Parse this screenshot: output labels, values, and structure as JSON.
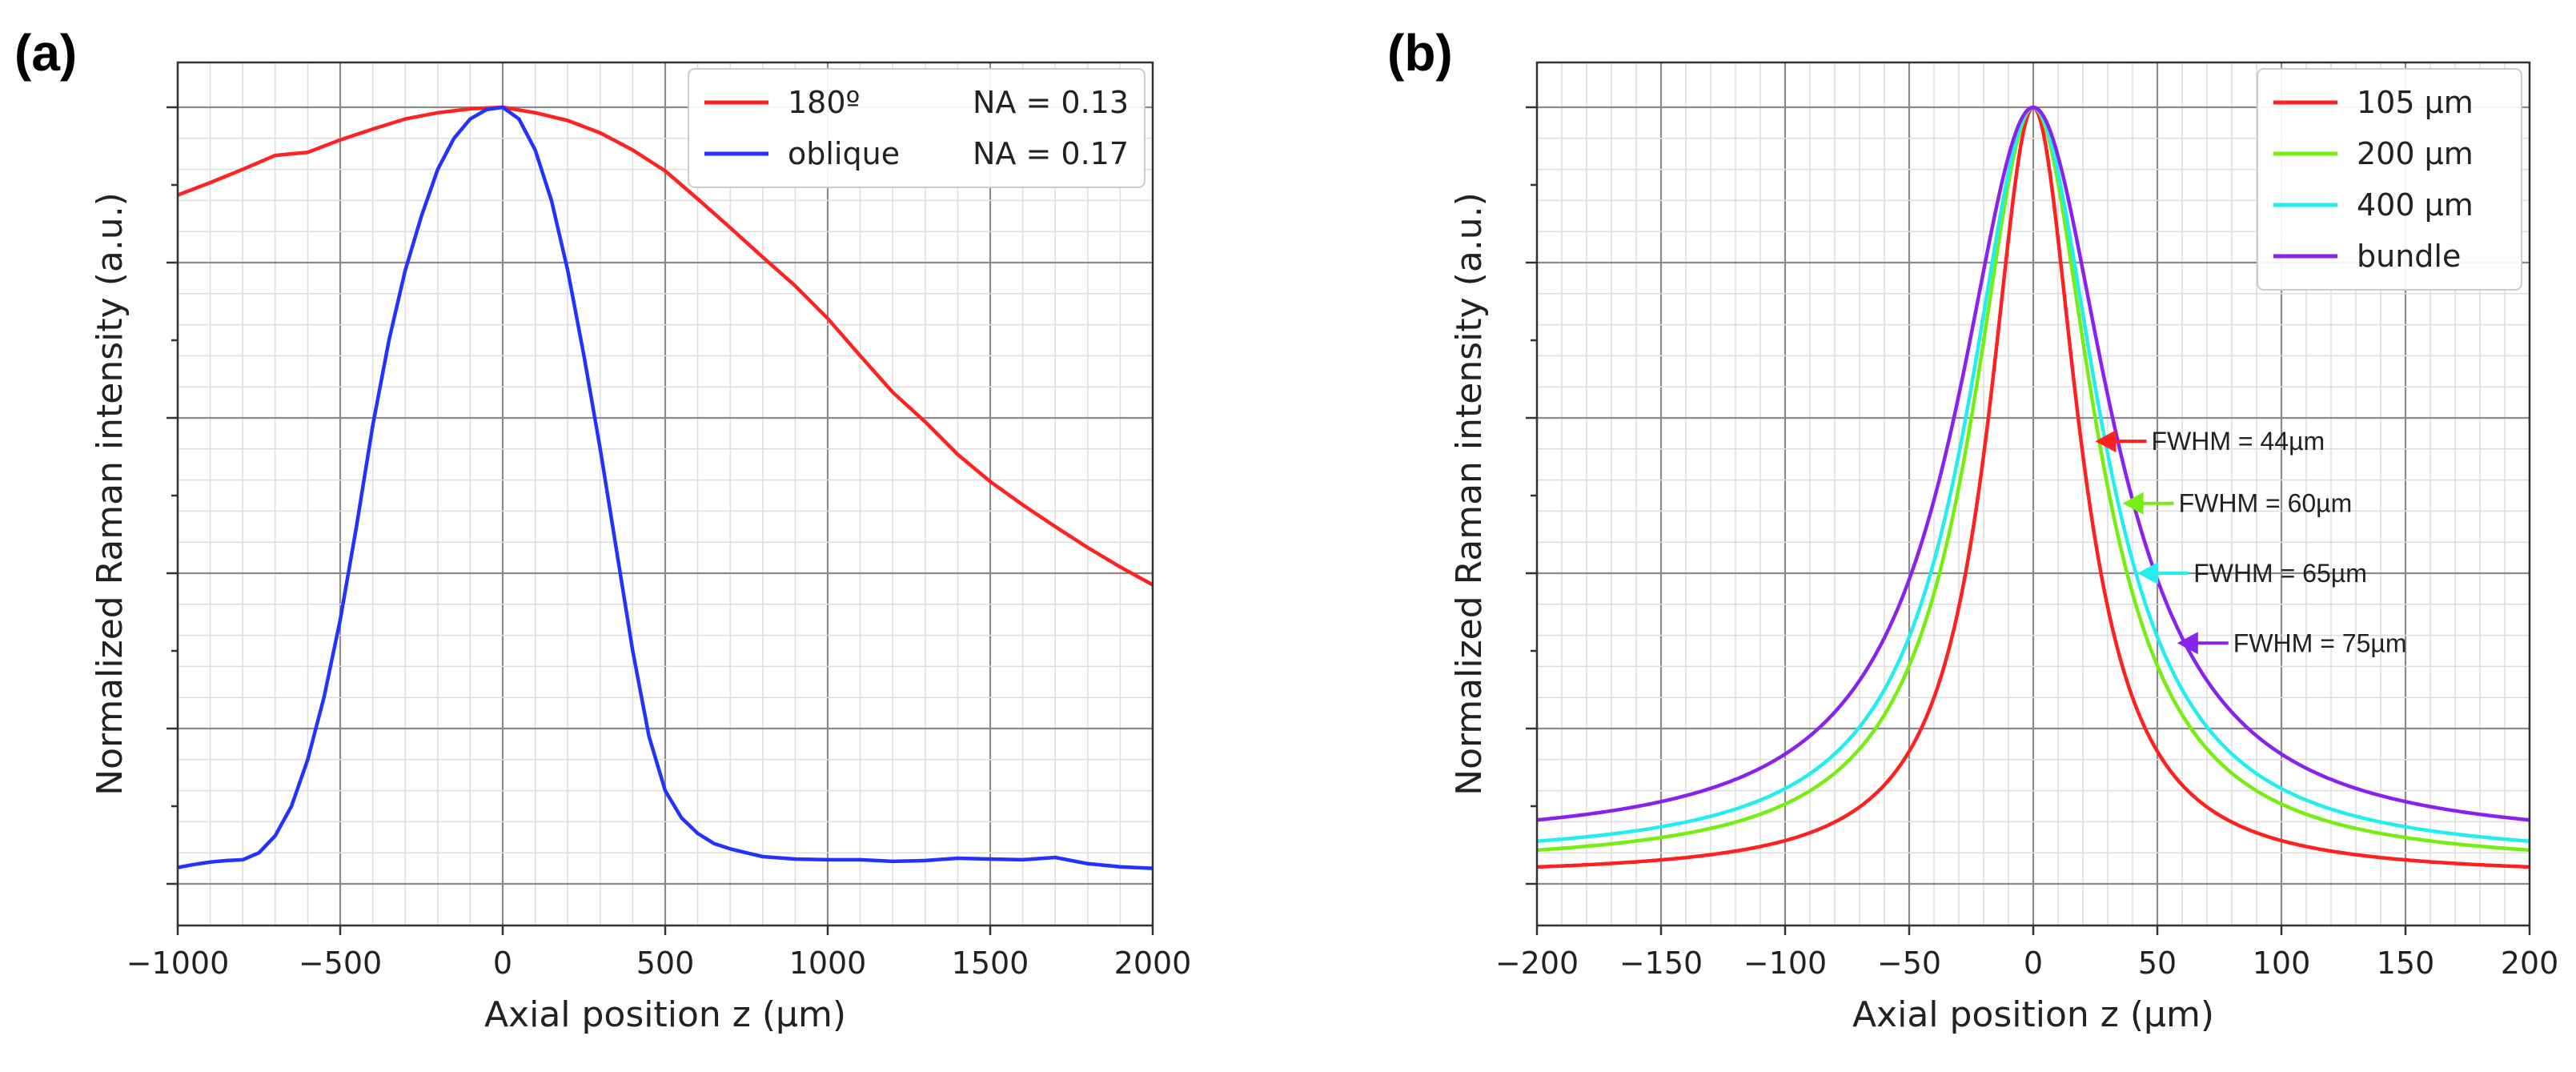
{
  "chart_data": [
    {
      "panel_label": "(a)",
      "type": "line",
      "xlabel": "Axial position  z (µm)",
      "ylabel": "Normalized Raman intensity (a.u.)",
      "xlim": [
        -1000,
        2000
      ],
      "ylim": [
        0.0,
        1.0
      ],
      "x_ticks": [
        -1000,
        -500,
        0,
        500,
        1000,
        1500,
        2000
      ],
      "x_tick_labels": [
        "−1000",
        "−500",
        "0",
        "500",
        "1000",
        "1500",
        "2000"
      ],
      "y_ticks": [
        0.0,
        0.2,
        0.4,
        0.6,
        0.8,
        1.0
      ],
      "y_tick_labels": [
        "",
        "",
        "",
        "",
        "",
        ""
      ],
      "grid": true,
      "legend": {
        "placement": "top-right",
        "entries": [
          {
            "label": "180º",
            "note": "NA = 0.13",
            "color": "#ff2222"
          },
          {
            "label": "oblique",
            "note": "NA = 0.17",
            "color": "#2233ff"
          }
        ]
      },
      "series": [
        {
          "name": "180º",
          "color": "#ff2222",
          "x": [
            -1000,
            -900,
            -800,
            -700,
            -600,
            -500,
            -400,
            -300,
            -200,
            -100,
            0,
            100,
            200,
            300,
            400,
            500,
            600,
            700,
            800,
            900,
            1000,
            1100,
            1200,
            1300,
            1400,
            1500,
            1600,
            1700,
            1800,
            1900,
            2000
          ],
          "y": [
            0.887,
            0.903,
            0.92,
            0.938,
            0.942,
            0.958,
            0.972,
            0.985,
            0.993,
            0.998,
            1.0,
            0.993,
            0.983,
            0.967,
            0.945,
            0.918,
            0.882,
            0.845,
            0.807,
            0.77,
            0.728,
            0.68,
            0.633,
            0.595,
            0.553,
            0.518,
            0.488,
            0.46,
            0.433,
            0.408,
            0.385
          ]
        },
        {
          "name": "oblique",
          "color": "#2233ff",
          "x": [
            -1000,
            -950,
            -900,
            -850,
            -800,
            -750,
            -700,
            -650,
            -600,
            -550,
            -500,
            -450,
            -400,
            -350,
            -300,
            -250,
            -200,
            -150,
            -100,
            -50,
            0,
            50,
            100,
            150,
            200,
            250,
            300,
            350,
            400,
            450,
            500,
            550,
            600,
            650,
            700,
            750,
            800,
            900,
            1000,
            1100,
            1200,
            1300,
            1400,
            1500,
            1600,
            1700,
            1800,
            1900,
            2000
          ],
          "y": [
            0.021,
            0.025,
            0.028,
            0.03,
            0.031,
            0.04,
            0.062,
            0.1,
            0.16,
            0.24,
            0.34,
            0.46,
            0.59,
            0.7,
            0.79,
            0.86,
            0.92,
            0.96,
            0.985,
            0.997,
            1.0,
            0.985,
            0.945,
            0.88,
            0.79,
            0.68,
            0.56,
            0.43,
            0.3,
            0.19,
            0.12,
            0.085,
            0.065,
            0.052,
            0.045,
            0.04,
            0.035,
            0.032,
            0.031,
            0.031,
            0.029,
            0.03,
            0.033,
            0.032,
            0.031,
            0.034,
            0.026,
            0.022,
            0.02
          ]
        }
      ]
    },
    {
      "panel_label": "(b)",
      "type": "line",
      "xlabel": "Axial position  z (µm)",
      "ylabel": "Normalized Raman intensity (a.u.)",
      "xlim": [
        -200,
        200
      ],
      "ylim": [
        0.0,
        1.0
      ],
      "x_ticks": [
        -200,
        -150,
        -100,
        -50,
        0,
        50,
        100,
        150,
        200
      ],
      "x_tick_labels": [
        "−200",
        "−150",
        "−100",
        "−50",
        "0",
        "50",
        "100",
        "150",
        "200"
      ],
      "y_ticks": [
        0.0,
        0.2,
        0.4,
        0.6,
        0.8,
        1.0
      ],
      "y_tick_labels": [
        "",
        "",
        "",
        "",
        "",
        ""
      ],
      "grid": true,
      "legend": {
        "placement": "top-right",
        "entries": [
          {
            "label": "105 µm",
            "color": "#ff2020"
          },
          {
            "label": "200 µm",
            "color": "#77ee11"
          },
          {
            "label": "400 µm",
            "color": "#22eeee"
          },
          {
            "label": "bundle",
            "color": "#8822ee"
          }
        ]
      },
      "series": [
        {
          "name": "105 µm",
          "color": "#ff2020",
          "model": "lorentzian",
          "fwhm": 44,
          "baseline": 0.0
        },
        {
          "name": "200 µm",
          "color": "#77ee11",
          "model": "lorentzian",
          "fwhm": 60,
          "baseline": 0.0
        },
        {
          "name": "400 µm",
          "color": "#22eeee",
          "model": "lorentzian",
          "fwhm": 65,
          "baseline": 0.0
        },
        {
          "name": "bundle",
          "color": "#8822ee",
          "model": "lorentzian",
          "fwhm": 75,
          "baseline": 0.0
        }
      ],
      "annotations": [
        {
          "text": "FWHM = 44µm",
          "color": "#ff2020",
          "x": 25,
          "y": 0.57
        },
        {
          "text": "FWHM = 60µm",
          "color": "#77ee11",
          "x": 36,
          "y": 0.49
        },
        {
          "text": "FWHM = 65µm",
          "color": "#22eeee",
          "x": 42,
          "y": 0.4
        },
        {
          "text": "FWHM = 75µm",
          "color": "#8822ee",
          "x": 58,
          "y": 0.31
        }
      ]
    }
  ]
}
